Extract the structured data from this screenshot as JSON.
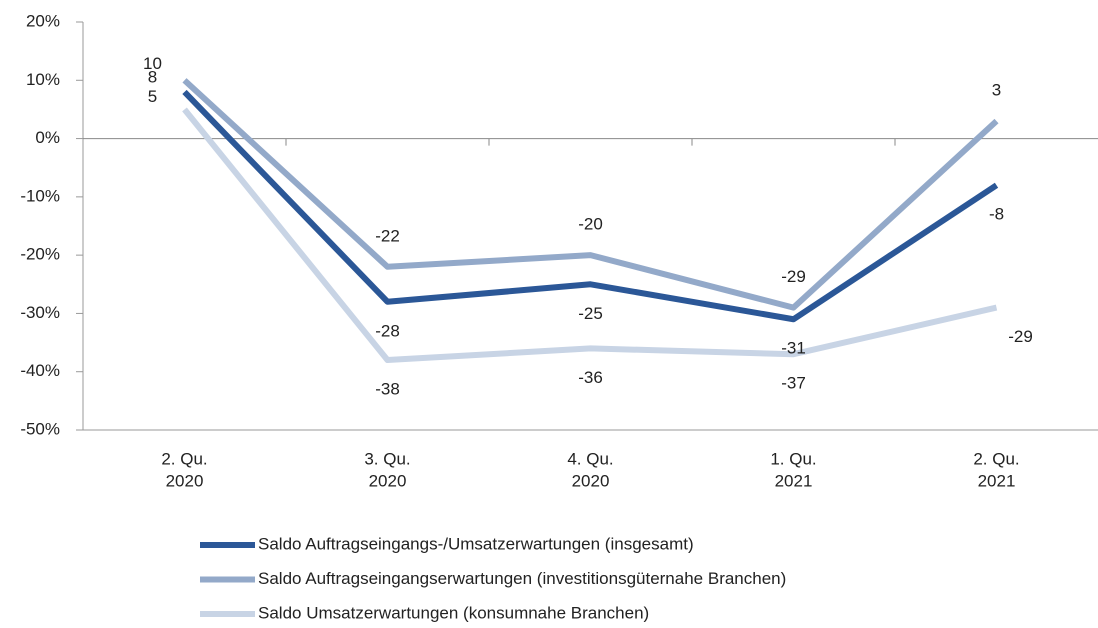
{
  "chart_data": {
    "type": "line",
    "categories": [
      [
        "2. Qu.",
        "2020"
      ],
      [
        "3. Qu.",
        "2020"
      ],
      [
        "4. Qu.",
        "2020"
      ],
      [
        "1. Qu.",
        "2021"
      ],
      [
        "2. Qu.",
        "2021"
      ]
    ],
    "series": [
      {
        "name": "Saldo Auftragseingangs-/Umsatzerwartungen (insgesamt)",
        "color": "#2b5797",
        "values": [
          8,
          -28,
          -25,
          -31,
          -8
        ]
      },
      {
        "name": "Saldo Auftragseingangserwartungen (investitionsgüternahe Branchen)",
        "color": "#93a9c9",
        "values": [
          10,
          -22,
          -20,
          -29,
          3
        ]
      },
      {
        "name": "Saldo Umsatzerwartungen (konsumnahe Branchen)",
        "color": "#c8d4e5",
        "values": [
          5,
          -38,
          -36,
          -37,
          -29
        ]
      }
    ],
    "ylim": [
      -50,
      20
    ],
    "yticks": [
      {
        "value": -50,
        "label": "-50%"
      },
      {
        "value": -40,
        "label": "-40%"
      },
      {
        "value": -30,
        "label": "-30%"
      },
      {
        "value": -20,
        "label": "-20%"
      },
      {
        "value": -10,
        "label": "-10%"
      },
      {
        "value": 0,
        "label": "0%"
      },
      {
        "value": 10,
        "label": "10%"
      },
      {
        "value": 20,
        "label": "20%"
      }
    ],
    "legend": "bottom"
  }
}
